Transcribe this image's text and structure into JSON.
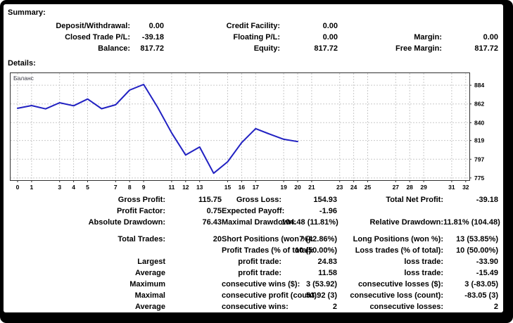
{
  "summary": {
    "heading": "Summary:",
    "rows": [
      [
        "Deposit/Withdrawal:",
        "0.00",
        "Credit Facility:",
        "0.00",
        "",
        ""
      ],
      [
        "Closed Trade P/L:",
        "-39.18",
        "Floating P/L:",
        "0.00",
        "Margin:",
        "0.00"
      ],
      [
        "Balance:",
        "817.72",
        "Equity:",
        "817.72",
        "Free Margin:",
        "817.72"
      ]
    ]
  },
  "details": {
    "heading": "Details:",
    "rows": [
      [
        "Gross Profit:",
        "115.75",
        "Gross Loss:",
        "154.93",
        "Total Net Profit:",
        "-39.18"
      ],
      [
        "Profit Factor:",
        "0.75",
        "Expected Payoff:",
        "-1.96",
        "",
        ""
      ],
      [
        "Absolute Drawdown:",
        "76.43",
        "Maximal Drawdown:",
        "104.48 (11.81%)",
        "Relative Drawdown:",
        "11.81% (104.48)"
      ],
      "gap",
      [
        "Total Trades:",
        "20",
        "Short Positions (won %):",
        "7 (42.86%)",
        "Long Positions (won %):",
        "13 (53.85%)"
      ],
      [
        "",
        "",
        "Profit Trades (% of total):",
        "10 (50.00%)",
        "Loss trades (% of total):",
        "10 (50.00%)"
      ],
      [
        "Largest",
        "",
        "profit trade:",
        "24.83",
        "loss trade:",
        "-33.90"
      ],
      [
        "Average",
        "",
        "profit trade:",
        "11.58",
        "loss trade:",
        "-15.49"
      ],
      [
        "Maximum",
        "",
        "consecutive wins ($):",
        "3 (53.92)",
        "consecutive losses ($):",
        "3 (-83.05)"
      ],
      [
        "Maximal",
        "",
        "consecutive profit (count):",
        "53.92 (3)",
        "consecutive loss (count):",
        "-83.05 (3)"
      ],
      [
        "Average",
        "",
        "consecutive wins:",
        "2",
        "consecutive losses:",
        "2"
      ]
    ]
  },
  "chart_data": {
    "type": "line",
    "title": "Баланс",
    "legend_position": "top-left",
    "grid": "dashed",
    "x": [
      0,
      1,
      2,
      3,
      4,
      5,
      6,
      7,
      8,
      9,
      10,
      11,
      12,
      13,
      14,
      15,
      16,
      17,
      18,
      19,
      20
    ],
    "series": [
      {
        "name": "Баланс",
        "values": [
          856.9,
          860.1,
          856.2,
          863.4,
          859.9,
          867.8,
          856.4,
          861.0,
          878.3,
          884.95,
          858.0,
          828.0,
          801.9,
          811.4,
          780.47,
          794.0,
          816.5,
          833.0,
          826.5,
          820.5,
          817.72
        ]
      }
    ],
    "x_ticks": [
      0,
      1,
      3,
      4,
      5,
      7,
      8,
      9,
      11,
      12,
      13,
      15,
      16,
      17,
      19,
      20,
      21,
      23,
      24,
      25,
      27,
      28,
      29,
      31,
      32
    ],
    "y_ticks": [
      884,
      862,
      840,
      819,
      797,
      775
    ],
    "xlim": [
      0,
      32.5
    ],
    "ylim": [
      772.4,
      899
    ]
  },
  "colors": {
    "line": "#2121c2",
    "grid": "#c9c9c9",
    "plot_border": "#303030",
    "frame": "#000000",
    "background": "#ffffff",
    "text": "#000000",
    "chart_label": "#3b3b46"
  }
}
